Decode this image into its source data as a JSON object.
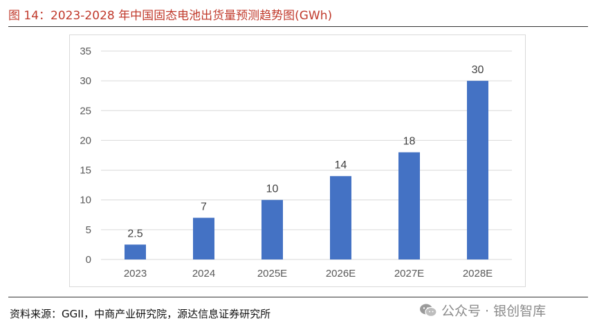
{
  "title": "图 14：2023-2028 年中国固态电池出货量预测趋势图(GWh)",
  "source": "资料来源：GGII，中商产业研究院，源达信息证券研究所",
  "watermark": {
    "text": "公众号 · 银创智库",
    "icon": "wechat-icon"
  },
  "colors": {
    "bar": "#4472c4",
    "title": "#c0392b",
    "grid": "#d9d9d9",
    "text": "#595959"
  },
  "chart_data": {
    "type": "bar",
    "title": "",
    "xlabel": "",
    "ylabel": "",
    "categories": [
      "2023",
      "2024",
      "2025E",
      "2026E",
      "2027E",
      "2028E"
    ],
    "values": [
      2.5,
      7,
      10,
      14,
      18,
      30
    ],
    "data_labels": [
      "2.5",
      "7",
      "10",
      "14",
      "18",
      "30"
    ],
    "y_ticks": [
      "0",
      "5",
      "10",
      "15",
      "20",
      "25",
      "30",
      "35"
    ],
    "ylim": [
      0,
      35
    ],
    "grid": true,
    "legend": "none"
  }
}
